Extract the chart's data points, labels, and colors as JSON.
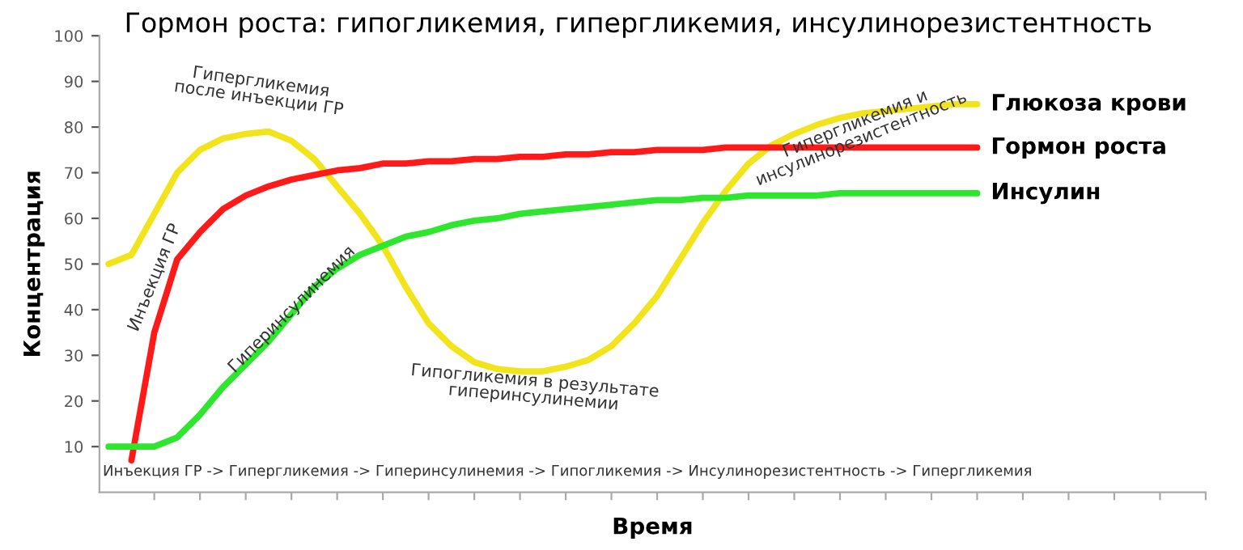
{
  "chart_data": {
    "type": "line",
    "title": "Гормон роста: гипогликемия, гипергликемия, инсулинорезистентность",
    "xlabel": "Время",
    "ylabel": "Концентрация",
    "categories": [
      null,
      null,
      null,
      null,
      null,
      null,
      null,
      null,
      null,
      null,
      null,
      null,
      null,
      null,
      null,
      null,
      null,
      null,
      null,
      null,
      null,
      null,
      null,
      null,
      null,
      null,
      null,
      null,
      null,
      null,
      null,
      null,
      null,
      null,
      null,
      null,
      null,
      null,
      null,
      null,
      null,
      null,
      null,
      null,
      null,
      null,
      null,
      null,
      null
    ],
    "ylim": [
      0,
      100
    ],
    "yticks": [
      10,
      20,
      30,
      40,
      50,
      60,
      70,
      80,
      90,
      100
    ],
    "grid": false,
    "legend": false,
    "marker": "none",
    "line_style": "solid",
    "series": [
      {
        "name": "Глюкоза крови",
        "color": "#f2e41a",
        "values": [
          50,
          52,
          61,
          70,
          75,
          77.5,
          78.5,
          79,
          77,
          73,
          67,
          61,
          54,
          45,
          37,
          32,
          28.5,
          27,
          26.5,
          26.5,
          27.5,
          29,
          32,
          37,
          43,
          51,
          59,
          66,
          72,
          76,
          78.5,
          80.5,
          82,
          83,
          83.5,
          84,
          84.5,
          85,
          85,
          null,
          null,
          null,
          null,
          null,
          null,
          null,
          null,
          null,
          null
        ]
      },
      {
        "name": "Гормон роста",
        "color": "#ff1a1a",
        "values": [
          null,
          7,
          35,
          51,
          57,
          62,
          65,
          67,
          68.5,
          69.5,
          70.5,
          71,
          72,
          72,
          72.5,
          72.5,
          73,
          73,
          73.5,
          73.5,
          74,
          74,
          74.5,
          74.5,
          75,
          75,
          75,
          75.5,
          75.5,
          75.5,
          75.5,
          75.5,
          75.5,
          75.5,
          75.5,
          75.5,
          75.5,
          75.5,
          75.5,
          null,
          null,
          null,
          null,
          null,
          null,
          null,
          null,
          null,
          null
        ]
      },
      {
        "name": "Инсулин",
        "color": "#2ee62e",
        "values": [
          10,
          10,
          10,
          12,
          17,
          23,
          28,
          33,
          39,
          45,
          49,
          52,
          54,
          56,
          57,
          58.5,
          59.5,
          60,
          61,
          61.5,
          62,
          62.5,
          63,
          63.5,
          64,
          64,
          64.5,
          64.5,
          65,
          65,
          65,
          65,
          65.5,
          65.5,
          65.5,
          65.5,
          65.5,
          65.5,
          65.5,
          null,
          null,
          null,
          null,
          null,
          null,
          null,
          null,
          null,
          null
        ]
      }
    ],
    "annotations": [
      "Гипергликемия\nпосле инъекции ГР",
      "Инъекция ГР",
      "Гиперинсулинемия",
      "Гипогликемия в результате\nгиперинсулинемии",
      "Гипергликемия и\nинсулинорезистентность",
      "Инъекция ГР -> Гипергликемия -> Гиперинсулинемия -> Гипогликемия -> Инсулинорезистентность -> Гипергликемия"
    ]
  }
}
